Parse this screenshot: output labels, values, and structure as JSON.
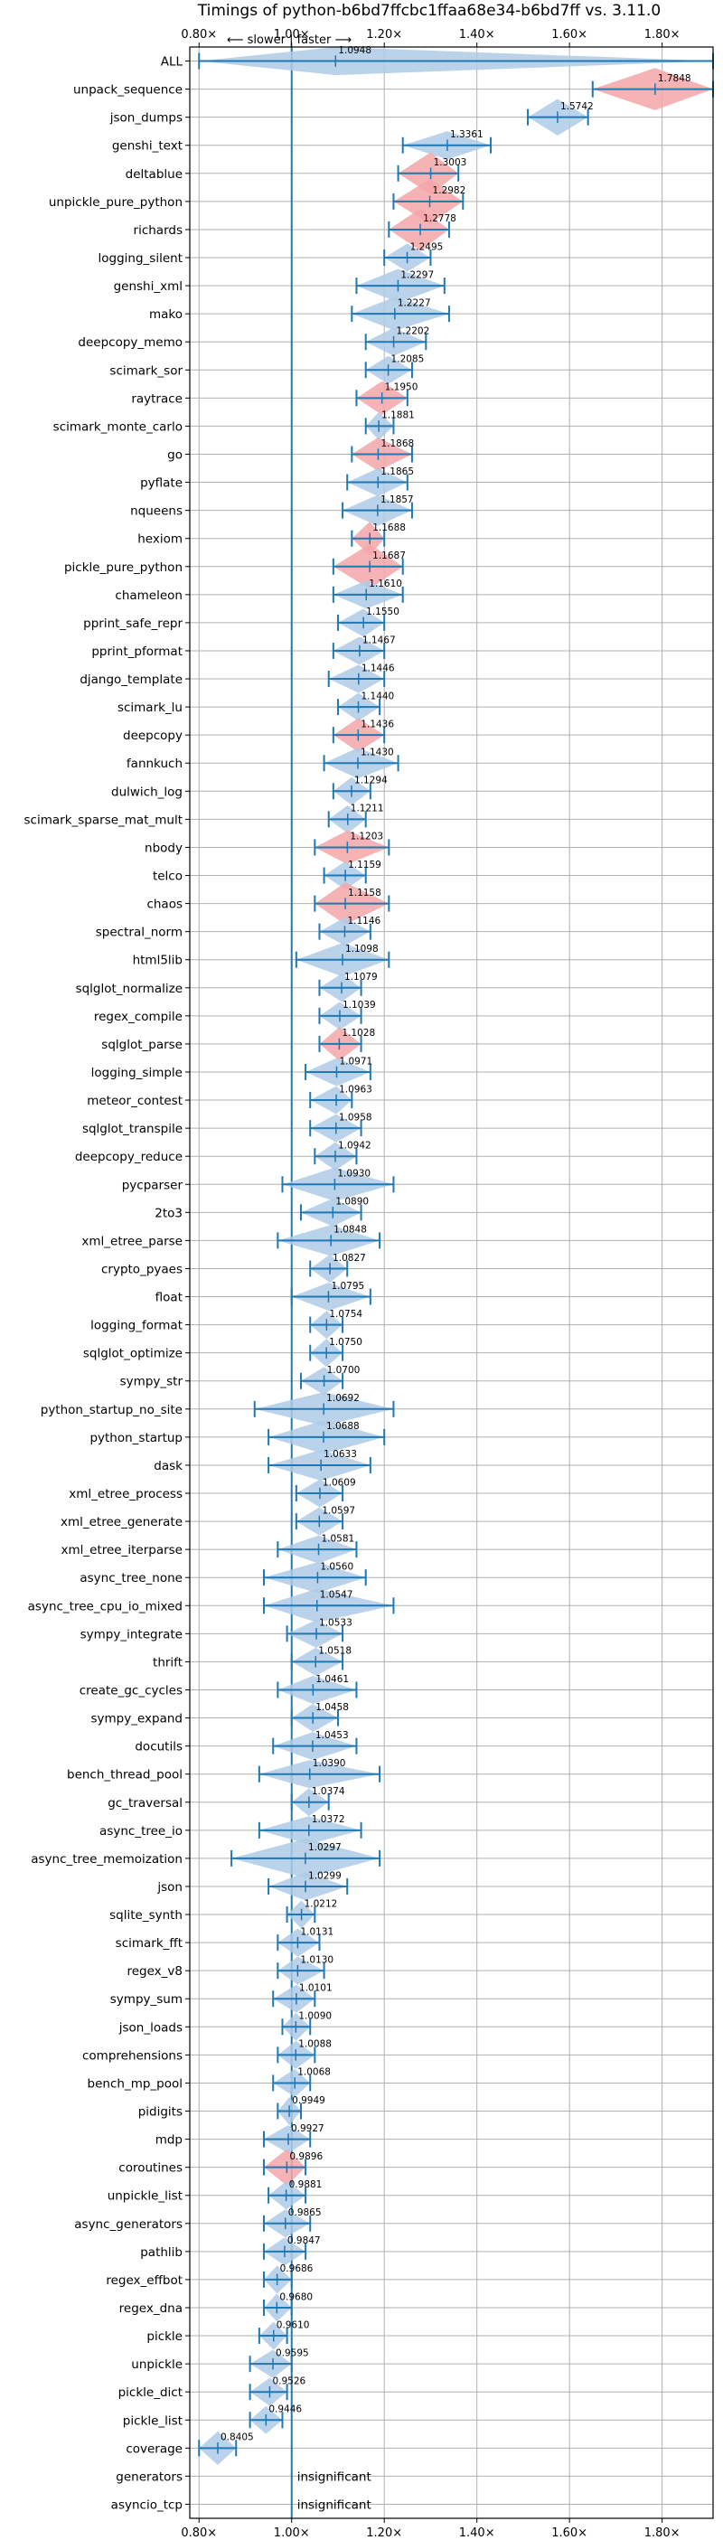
{
  "chart_data": {
    "type": "violin",
    "title": "Timings of python-b6bd7ffcbc1ffaa68e34-b6bd7ff vs. 3.11.0",
    "direction_note": "⟵ slower  |  faster ⟶",
    "x_ticks": [
      "0.80×",
      "1.00×",
      "1.20×",
      "1.40×",
      "1.60×",
      "1.80×"
    ],
    "x_tick_values": [
      0.8,
      1.0,
      1.2,
      1.4,
      1.6,
      1.8
    ],
    "xlim": [
      0.78,
      1.91
    ],
    "reference_line": 1.0,
    "grid": true,
    "colors": {
      "faster": "#aecbe8",
      "slower": "#f4a6a9",
      "line": "#1f77b4"
    },
    "insignificant_label": "insignificant",
    "benchmarks": [
      {
        "name": "ALL",
        "value": 1.0948,
        "label": "1.0948",
        "min": 0.8,
        "max": 1.91,
        "width": 0.5,
        "color": "faster"
      },
      {
        "name": "unpack_sequence",
        "value": 1.7848,
        "label": "1.7848",
        "min": 1.65,
        "max": 1.91,
        "width": 0.75,
        "color": "slower"
      },
      {
        "name": "json_dumps",
        "value": 1.5742,
        "label": "1.5742",
        "min": 1.51,
        "max": 1.64,
        "width": 0.65,
        "color": "faster"
      },
      {
        "name": "genshi_text",
        "value": 1.3361,
        "label": "1.3361",
        "min": 1.24,
        "max": 1.43,
        "width": 0.5,
        "color": "faster"
      },
      {
        "name": "deltablue",
        "value": 1.3003,
        "label": "1.3003",
        "min": 1.23,
        "max": 1.36,
        "width": 0.75,
        "color": "slower"
      },
      {
        "name": "unpickle_pure_python",
        "value": 1.2982,
        "label": "1.2982",
        "min": 1.22,
        "max": 1.37,
        "width": 0.8,
        "color": "slower"
      },
      {
        "name": "richards",
        "value": 1.2778,
        "label": "1.2778",
        "min": 1.21,
        "max": 1.34,
        "width": 0.75,
        "color": "slower"
      },
      {
        "name": "logging_silent",
        "value": 1.2495,
        "label": "1.2495",
        "min": 1.2,
        "max": 1.3,
        "width": 0.5,
        "color": "faster"
      },
      {
        "name": "genshi_xml",
        "value": 1.2297,
        "label": "1.2297",
        "min": 1.14,
        "max": 1.33,
        "width": 0.6,
        "color": "faster"
      },
      {
        "name": "mako",
        "value": 1.2227,
        "label": "1.2227",
        "min": 1.13,
        "max": 1.34,
        "width": 0.6,
        "color": "faster"
      },
      {
        "name": "deepcopy_memo",
        "value": 1.2202,
        "label": "1.2202",
        "min": 1.16,
        "max": 1.29,
        "width": 0.5,
        "color": "faster"
      },
      {
        "name": "scimark_sor",
        "value": 1.2085,
        "label": "1.2085",
        "min": 1.16,
        "max": 1.26,
        "width": 0.5,
        "color": "faster"
      },
      {
        "name": "raytrace",
        "value": 1.195,
        "label": "1.1950",
        "min": 1.14,
        "max": 1.25,
        "width": 0.6,
        "color": "slower"
      },
      {
        "name": "scimark_monte_carlo",
        "value": 1.1881,
        "label": "1.1881",
        "min": 1.16,
        "max": 1.22,
        "width": 0.5,
        "color": "faster"
      },
      {
        "name": "go",
        "value": 1.1868,
        "label": "1.1868",
        "min": 1.13,
        "max": 1.26,
        "width": 0.6,
        "color": "slower"
      },
      {
        "name": "pyflate",
        "value": 1.1865,
        "label": "1.1865",
        "min": 1.12,
        "max": 1.25,
        "width": 0.5,
        "color": "faster"
      },
      {
        "name": "nqueens",
        "value": 1.1857,
        "label": "1.1857",
        "min": 1.11,
        "max": 1.26,
        "width": 0.55,
        "color": "faster"
      },
      {
        "name": "hexiom",
        "value": 1.1688,
        "label": "1.1688",
        "min": 1.13,
        "max": 1.2,
        "width": 0.6,
        "color": "slower"
      },
      {
        "name": "pickle_pure_python",
        "value": 1.1687,
        "label": "1.1687",
        "min": 1.09,
        "max": 1.24,
        "width": 0.8,
        "color": "slower"
      },
      {
        "name": "chameleon",
        "value": 1.161,
        "label": "1.1610",
        "min": 1.09,
        "max": 1.24,
        "width": 0.5,
        "color": "faster"
      },
      {
        "name": "pprint_safe_repr",
        "value": 1.155,
        "label": "1.1550",
        "min": 1.1,
        "max": 1.2,
        "width": 0.5,
        "color": "faster"
      },
      {
        "name": "pprint_pformat",
        "value": 1.1467,
        "label": "1.1467",
        "min": 1.09,
        "max": 1.2,
        "width": 0.5,
        "color": "faster"
      },
      {
        "name": "django_template",
        "value": 1.1446,
        "label": "1.1446",
        "min": 1.08,
        "max": 1.2,
        "width": 0.5,
        "color": "faster"
      },
      {
        "name": "scimark_lu",
        "value": 1.144,
        "label": "1.1440",
        "min": 1.1,
        "max": 1.19,
        "width": 0.5,
        "color": "faster"
      },
      {
        "name": "deepcopy",
        "value": 1.1436,
        "label": "1.1436",
        "min": 1.09,
        "max": 1.2,
        "width": 0.6,
        "color": "slower"
      },
      {
        "name": "fannkuch",
        "value": 1.143,
        "label": "1.1430",
        "min": 1.07,
        "max": 1.23,
        "width": 0.55,
        "color": "faster"
      },
      {
        "name": "dulwich_log",
        "value": 1.1294,
        "label": "1.1294",
        "min": 1.09,
        "max": 1.17,
        "width": 0.5,
        "color": "faster"
      },
      {
        "name": "scimark_sparse_mat_mult",
        "value": 1.1211,
        "label": "1.1211",
        "min": 1.08,
        "max": 1.16,
        "width": 0.5,
        "color": "faster"
      },
      {
        "name": "nbody",
        "value": 1.1203,
        "label": "1.1203",
        "min": 1.05,
        "max": 1.21,
        "width": 0.6,
        "color": "slower"
      },
      {
        "name": "telco",
        "value": 1.1159,
        "label": "1.1159",
        "min": 1.07,
        "max": 1.16,
        "width": 0.5,
        "color": "faster"
      },
      {
        "name": "chaos",
        "value": 1.1158,
        "label": "1.1158",
        "min": 1.05,
        "max": 1.21,
        "width": 0.75,
        "color": "slower"
      },
      {
        "name": "spectral_norm",
        "value": 1.1146,
        "label": "1.1146",
        "min": 1.06,
        "max": 1.17,
        "width": 0.5,
        "color": "faster"
      },
      {
        "name": "html5lib",
        "value": 1.1098,
        "label": "1.1098",
        "min": 1.01,
        "max": 1.21,
        "width": 0.6,
        "color": "faster"
      },
      {
        "name": "sqlglot_normalize",
        "value": 1.1079,
        "label": "1.1079",
        "min": 1.06,
        "max": 1.15,
        "width": 0.5,
        "color": "faster"
      },
      {
        "name": "regex_compile",
        "value": 1.1039,
        "label": "1.1039",
        "min": 1.06,
        "max": 1.15,
        "width": 0.5,
        "color": "faster"
      },
      {
        "name": "sqlglot_parse",
        "value": 1.1028,
        "label": "1.1028",
        "min": 1.06,
        "max": 1.15,
        "width": 0.6,
        "color": "slower"
      },
      {
        "name": "logging_simple",
        "value": 1.0971,
        "label": "1.0971",
        "min": 1.03,
        "max": 1.17,
        "width": 0.5,
        "color": "faster"
      },
      {
        "name": "meteor_contest",
        "value": 1.0963,
        "label": "1.0963",
        "min": 1.04,
        "max": 1.13,
        "width": 0.5,
        "color": "faster"
      },
      {
        "name": "sqlglot_transpile",
        "value": 1.0958,
        "label": "1.0958",
        "min": 1.04,
        "max": 1.15,
        "width": 0.5,
        "color": "faster"
      },
      {
        "name": "deepcopy_reduce",
        "value": 1.0942,
        "label": "1.0942",
        "min": 1.05,
        "max": 1.14,
        "width": 0.5,
        "color": "faster"
      },
      {
        "name": "pycparser",
        "value": 1.093,
        "label": "1.0930",
        "min": 0.98,
        "max": 1.22,
        "width": 0.6,
        "color": "faster"
      },
      {
        "name": "2to3",
        "value": 1.089,
        "label": "1.0890",
        "min": 1.02,
        "max": 1.15,
        "width": 0.5,
        "color": "faster"
      },
      {
        "name": "xml_etree_parse",
        "value": 1.0848,
        "label": "1.0848",
        "min": 0.97,
        "max": 1.19,
        "width": 0.55,
        "color": "faster"
      },
      {
        "name": "crypto_pyaes",
        "value": 1.0827,
        "label": "1.0827",
        "min": 1.04,
        "max": 1.12,
        "width": 0.5,
        "color": "faster"
      },
      {
        "name": "float",
        "value": 1.0795,
        "label": "1.0795",
        "min": 1.0,
        "max": 1.17,
        "width": 0.5,
        "color": "faster"
      },
      {
        "name": "logging_format",
        "value": 1.0754,
        "label": "1.0754",
        "min": 1.04,
        "max": 1.11,
        "width": 0.5,
        "color": "faster"
      },
      {
        "name": "sqlglot_optimize",
        "value": 1.075,
        "label": "1.0750",
        "min": 1.04,
        "max": 1.11,
        "width": 0.5,
        "color": "faster"
      },
      {
        "name": "sympy_str",
        "value": 1.07,
        "label": "1.0700",
        "min": 1.02,
        "max": 1.11,
        "width": 0.5,
        "color": "faster"
      },
      {
        "name": "python_startup_no_site",
        "value": 1.0692,
        "label": "1.0692",
        "min": 0.92,
        "max": 1.22,
        "width": 0.6,
        "color": "faster"
      },
      {
        "name": "python_startup",
        "value": 1.0688,
        "label": "1.0688",
        "min": 0.95,
        "max": 1.2,
        "width": 0.6,
        "color": "faster"
      },
      {
        "name": "dask",
        "value": 1.0633,
        "label": "1.0633",
        "min": 0.95,
        "max": 1.17,
        "width": 0.55,
        "color": "faster"
      },
      {
        "name": "xml_etree_process",
        "value": 1.0609,
        "label": "1.0609",
        "min": 1.01,
        "max": 1.11,
        "width": 0.5,
        "color": "faster"
      },
      {
        "name": "xml_etree_generate",
        "value": 1.0597,
        "label": "1.0597",
        "min": 1.01,
        "max": 1.11,
        "width": 0.5,
        "color": "faster"
      },
      {
        "name": "xml_etree_iterparse",
        "value": 1.0581,
        "label": "1.0581",
        "min": 0.97,
        "max": 1.14,
        "width": 0.5,
        "color": "faster"
      },
      {
        "name": "async_tree_none",
        "value": 1.056,
        "label": "1.0560",
        "min": 0.94,
        "max": 1.16,
        "width": 0.55,
        "color": "faster"
      },
      {
        "name": "async_tree_cpu_io_mixed",
        "value": 1.0547,
        "label": "1.0547",
        "min": 0.94,
        "max": 1.22,
        "width": 0.6,
        "color": "faster"
      },
      {
        "name": "sympy_integrate",
        "value": 1.0533,
        "label": "1.0533",
        "min": 0.99,
        "max": 1.11,
        "width": 0.5,
        "color": "faster"
      },
      {
        "name": "thrift",
        "value": 1.0518,
        "label": "1.0518",
        "min": 1.0,
        "max": 1.11,
        "width": 0.5,
        "color": "faster"
      },
      {
        "name": "create_gc_cycles",
        "value": 1.0461,
        "label": "1.0461",
        "min": 0.97,
        "max": 1.14,
        "width": 0.5,
        "color": "faster"
      },
      {
        "name": "sympy_expand",
        "value": 1.0458,
        "label": "1.0458",
        "min": 1.0,
        "max": 1.1,
        "width": 0.5,
        "color": "faster"
      },
      {
        "name": "docutils",
        "value": 1.0453,
        "label": "1.0453",
        "min": 0.96,
        "max": 1.14,
        "width": 0.5,
        "color": "faster"
      },
      {
        "name": "bench_thread_pool",
        "value": 1.039,
        "label": "1.0390",
        "min": 0.93,
        "max": 1.19,
        "width": 0.5,
        "color": "faster"
      },
      {
        "name": "gc_traversal",
        "value": 1.0374,
        "label": "1.0374",
        "min": 1.0,
        "max": 1.08,
        "width": 0.5,
        "color": "faster"
      },
      {
        "name": "async_tree_io",
        "value": 1.0372,
        "label": "1.0372",
        "min": 0.93,
        "max": 1.15,
        "width": 0.5,
        "color": "faster"
      },
      {
        "name": "async_tree_memoization",
        "value": 1.0297,
        "label": "1.0297",
        "min": 0.87,
        "max": 1.19,
        "width": 0.7,
        "color": "faster"
      },
      {
        "name": "json",
        "value": 1.0299,
        "label": "1.0299",
        "min": 0.95,
        "max": 1.12,
        "width": 0.5,
        "color": "faster"
      },
      {
        "name": "sqlite_synth",
        "value": 1.0212,
        "label": "1.0212",
        "min": 0.99,
        "max": 1.05,
        "width": 0.5,
        "color": "faster"
      },
      {
        "name": "scimark_fft",
        "value": 1.0131,
        "label": "1.0131",
        "min": 0.97,
        "max": 1.06,
        "width": 0.5,
        "color": "faster"
      },
      {
        "name": "regex_v8",
        "value": 1.013,
        "label": "1.0130",
        "min": 0.97,
        "max": 1.07,
        "width": 0.5,
        "color": "faster"
      },
      {
        "name": "sympy_sum",
        "value": 1.0101,
        "label": "1.0101",
        "min": 0.96,
        "max": 1.05,
        "width": 0.5,
        "color": "faster"
      },
      {
        "name": "json_loads",
        "value": 1.009,
        "label": "1.0090",
        "min": 0.98,
        "max": 1.04,
        "width": 0.5,
        "color": "faster"
      },
      {
        "name": "comprehensions",
        "value": 1.0088,
        "label": "1.0088",
        "min": 0.97,
        "max": 1.05,
        "width": 0.5,
        "color": "faster"
      },
      {
        "name": "bench_mp_pool",
        "value": 1.0068,
        "label": "1.0068",
        "min": 0.96,
        "max": 1.04,
        "width": 0.5,
        "color": "faster"
      },
      {
        "name": "pidigits",
        "value": 0.9949,
        "label": "0.9949",
        "min": 0.97,
        "max": 1.02,
        "width": 0.5,
        "color": "faster"
      },
      {
        "name": "mdp",
        "value": 0.9927,
        "label": "0.9927",
        "min": 0.94,
        "max": 1.04,
        "width": 0.5,
        "color": "faster"
      },
      {
        "name": "coroutines",
        "value": 0.9896,
        "label": "0.9896",
        "min": 0.94,
        "max": 1.03,
        "width": 0.65,
        "color": "slower"
      },
      {
        "name": "unpickle_list",
        "value": 0.9881,
        "label": "0.9881",
        "min": 0.95,
        "max": 1.03,
        "width": 0.5,
        "color": "faster"
      },
      {
        "name": "async_generators",
        "value": 0.9865,
        "label": "0.9865",
        "min": 0.94,
        "max": 1.04,
        "width": 0.5,
        "color": "faster"
      },
      {
        "name": "pathlib",
        "value": 0.9847,
        "label": "0.9847",
        "min": 0.94,
        "max": 1.03,
        "width": 0.5,
        "color": "faster"
      },
      {
        "name": "regex_effbot",
        "value": 0.9686,
        "label": "0.9686",
        "min": 0.94,
        "max": 1.0,
        "width": 0.5,
        "color": "faster"
      },
      {
        "name": "regex_dna",
        "value": 0.968,
        "label": "0.9680",
        "min": 0.94,
        "max": 1.0,
        "width": 0.5,
        "color": "faster"
      },
      {
        "name": "pickle",
        "value": 0.961,
        "label": "0.9610",
        "min": 0.93,
        "max": 0.99,
        "width": 0.5,
        "color": "faster"
      },
      {
        "name": "unpickle",
        "value": 0.9595,
        "label": "0.9595",
        "min": 0.91,
        "max": 1.0,
        "width": 0.5,
        "color": "faster"
      },
      {
        "name": "pickle_dict",
        "value": 0.9526,
        "label": "0.9526",
        "min": 0.91,
        "max": 0.99,
        "width": 0.5,
        "color": "faster"
      },
      {
        "name": "pickle_list",
        "value": 0.9446,
        "label": "0.9446",
        "min": 0.91,
        "max": 0.98,
        "width": 0.5,
        "color": "faster"
      },
      {
        "name": "coverage",
        "value": 0.8405,
        "label": "0.8405",
        "min": 0.8,
        "max": 0.88,
        "width": 0.6,
        "color": "faster"
      },
      {
        "name": "generators",
        "value": null,
        "label": "",
        "insignificant": true
      },
      {
        "name": "asyncio_tcp",
        "value": null,
        "label": "",
        "insignificant": true
      }
    ]
  }
}
